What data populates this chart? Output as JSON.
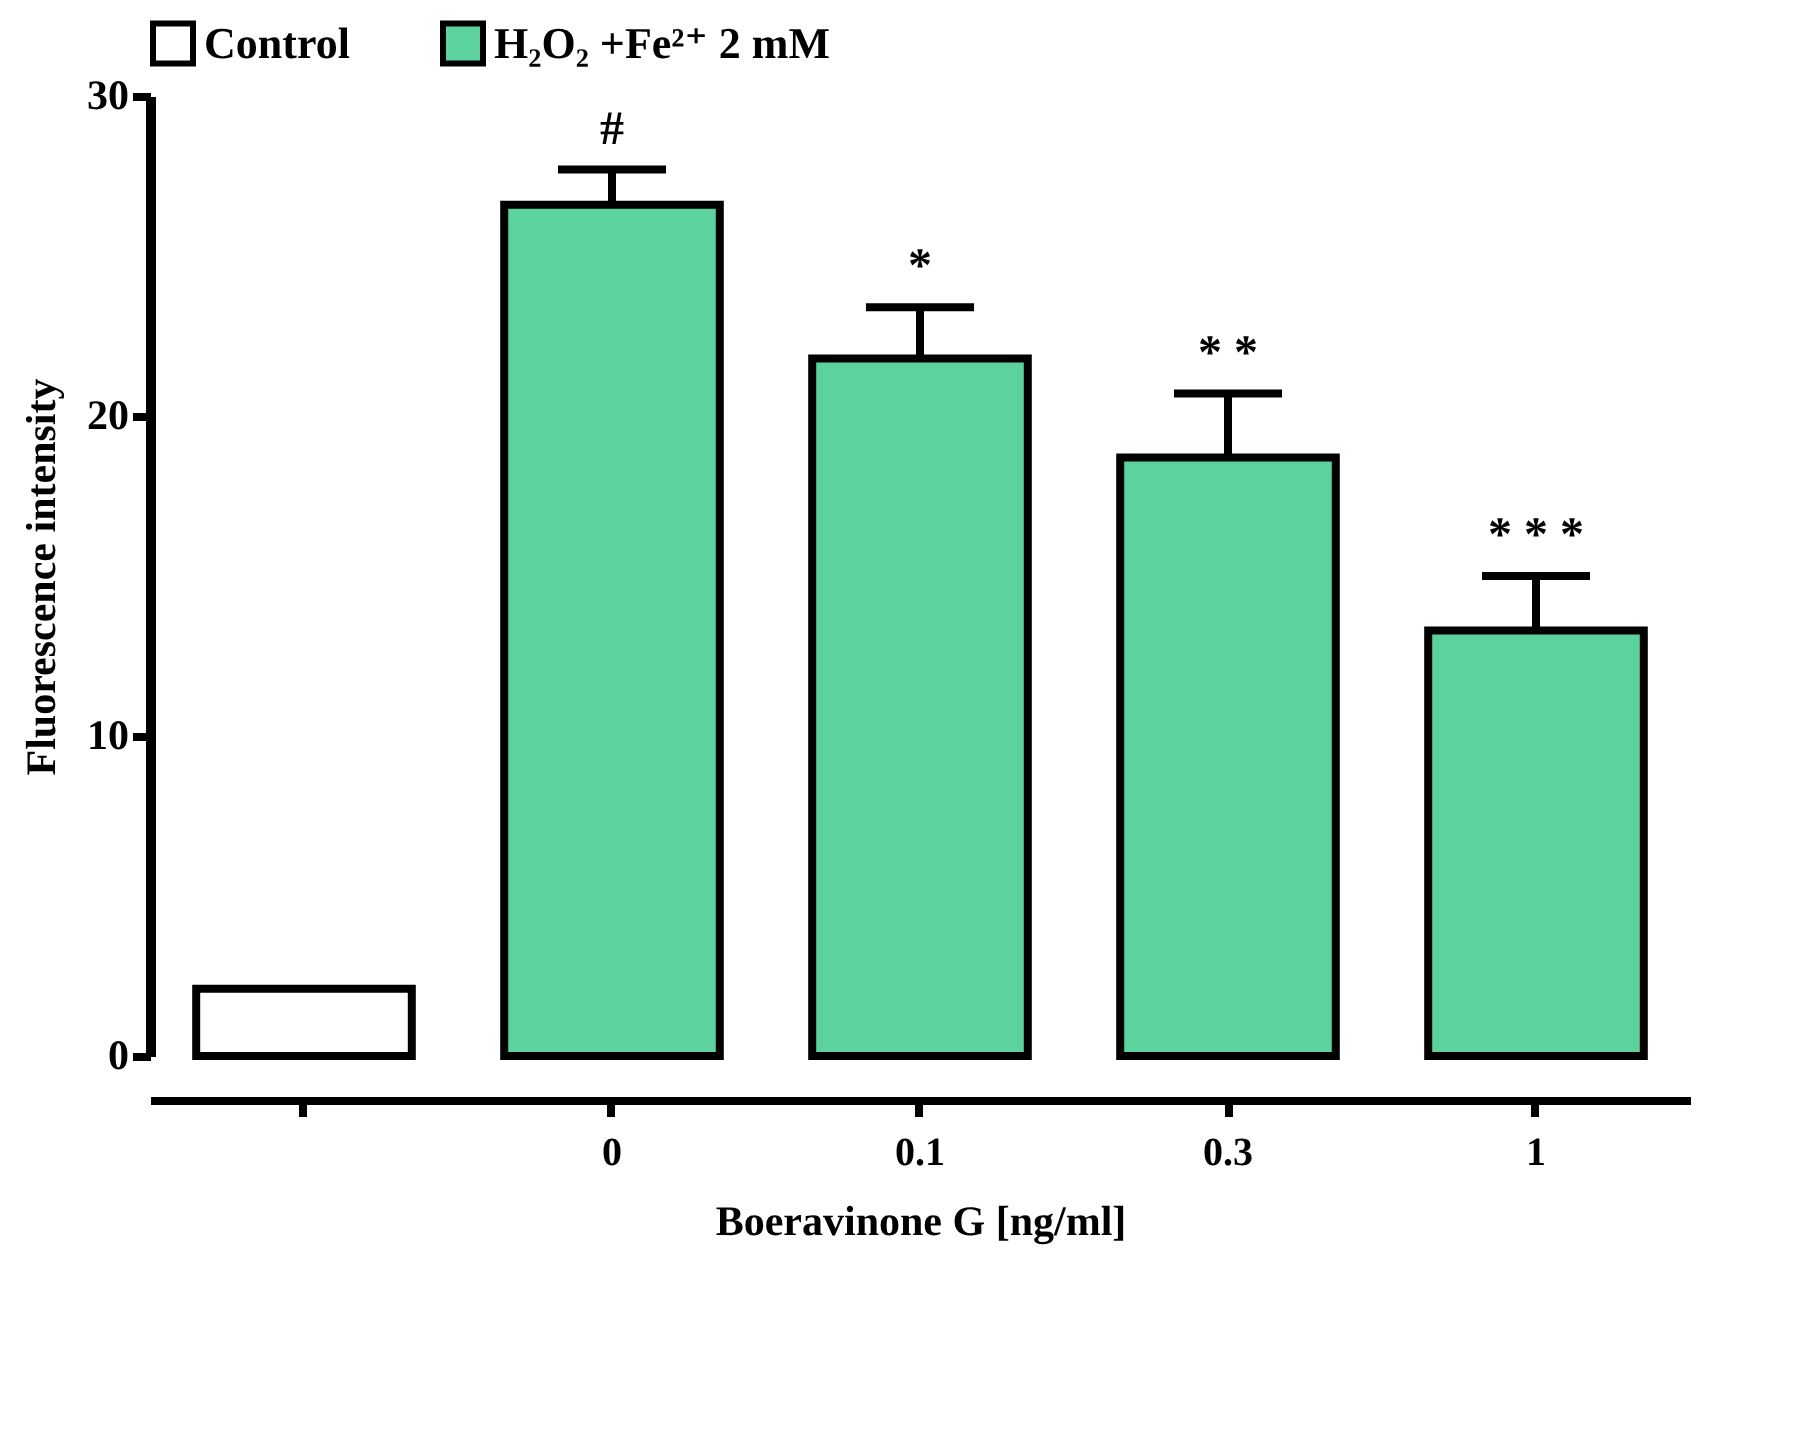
{
  "chart_data": {
    "type": "bar",
    "categories": [
      null,
      "0",
      "0.1",
      "0.3",
      "1"
    ],
    "xlabel": "Boeravinone G [ng/ml]",
    "ylabel": "Fluorescence intensity",
    "ylim": [
      0,
      30
    ],
    "yticks": [
      0,
      10,
      20,
      30
    ],
    "series": [
      {
        "name": "Control",
        "color": "#ffffff",
        "values": [
          2.1,
          null,
          null,
          null,
          null
        ],
        "errors": [
          null,
          null,
          null,
          null,
          null
        ]
      },
      {
        "name": "H₂O₂ +Fe²⁺ 2 mM",
        "color": "#5cd39c",
        "values": [
          null,
          26.6,
          21.8,
          18.7,
          13.3
        ],
        "errors": [
          null,
          [
            26.6,
            27.7
          ],
          [
            21.8,
            23.4
          ],
          [
            18.7,
            20.7
          ],
          [
            13.3,
            15.0
          ]
        ]
      }
    ],
    "annotations": [
      {
        "text": "#",
        "x": "0",
        "y": 27.7
      },
      {
        "text": "*",
        "x": "0.1",
        "y": 23.4
      },
      {
        "text": "* *",
        "x": "0.3",
        "y": 20.7
      },
      {
        "text": "* * *",
        "x": "1",
        "y": 15.0
      }
    ],
    "legend": "top",
    "grid": false
  }
}
